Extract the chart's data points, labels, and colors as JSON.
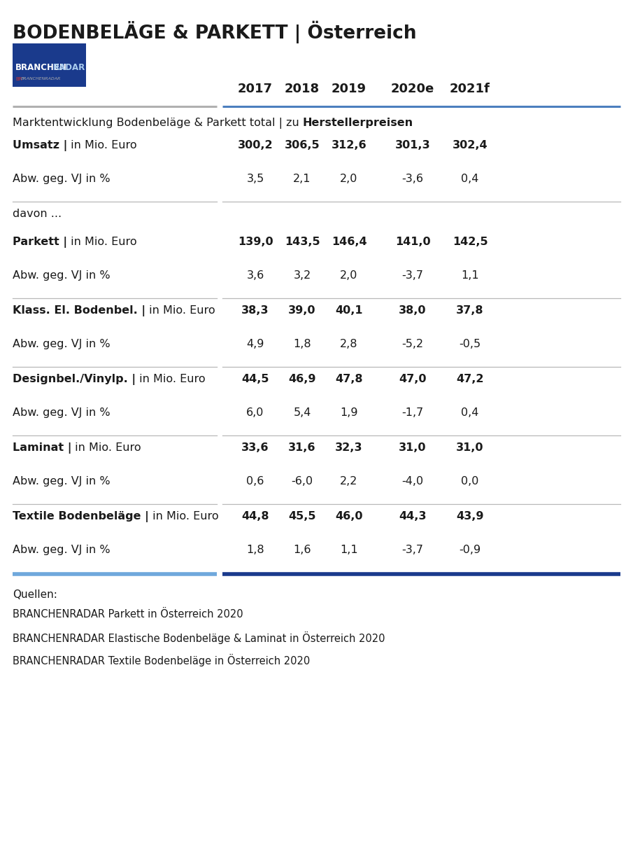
{
  "title": "BODENBELÄGE & PARKETT | Österreich",
  "logo_bg_color": "#1a3a8c",
  "years": [
    "2017",
    "2018",
    "2019",
    "2020e",
    "2021f"
  ],
  "rows": [
    {
      "label_bold": "Umsatz |",
      "label_normal": " in Mio. Euro",
      "values": [
        "300,2",
        "306,5",
        "312,6",
        "301,3",
        "302,4"
      ],
      "bold": true,
      "divider_after": false,
      "is_spacer": false
    },
    {
      "label_bold": "",
      "label_normal": "Abw. geg. VJ in %",
      "values": [
        "3,5",
        "2,1",
        "2,0",
        "-3,6",
        "0,4"
      ],
      "bold": false,
      "divider_after": true,
      "is_spacer": false
    },
    {
      "label_bold": "",
      "label_normal": "davon ...",
      "values": [
        "",
        "",
        "",
        "",
        ""
      ],
      "bold": false,
      "divider_after": false,
      "is_spacer": true
    },
    {
      "label_bold": "Parkett |",
      "label_normal": " in Mio. Euro",
      "values": [
        "139,0",
        "143,5",
        "146,4",
        "141,0",
        "142,5"
      ],
      "bold": true,
      "divider_after": false,
      "is_spacer": false
    },
    {
      "label_bold": "",
      "label_normal": "Abw. geg. VJ in %",
      "values": [
        "3,6",
        "3,2",
        "2,0",
        "-3,7",
        "1,1"
      ],
      "bold": false,
      "divider_after": true,
      "is_spacer": false
    },
    {
      "label_bold": "Klass. El. Bodenbel. |",
      "label_normal": " in Mio. Euro",
      "values": [
        "38,3",
        "39,0",
        "40,1",
        "38,0",
        "37,8"
      ],
      "bold": true,
      "divider_after": false,
      "is_spacer": false
    },
    {
      "label_bold": "",
      "label_normal": "Abw. geg. VJ in %",
      "values": [
        "4,9",
        "1,8",
        "2,8",
        "-5,2",
        "-0,5"
      ],
      "bold": false,
      "divider_after": true,
      "is_spacer": false
    },
    {
      "label_bold": "Designbel./Vinylp. |",
      "label_normal": " in Mio. Euro",
      "values": [
        "44,5",
        "46,9",
        "47,8",
        "47,0",
        "47,2"
      ],
      "bold": true,
      "divider_after": false,
      "is_spacer": false
    },
    {
      "label_bold": "",
      "label_normal": "Abw. geg. VJ in %",
      "values": [
        "6,0",
        "5,4",
        "1,9",
        "-1,7",
        "0,4"
      ],
      "bold": false,
      "divider_after": true,
      "is_spacer": false
    },
    {
      "label_bold": "Laminat |",
      "label_normal": " in Mio. Euro",
      "values": [
        "33,6",
        "31,6",
        "32,3",
        "31,0",
        "31,0"
      ],
      "bold": true,
      "divider_after": false,
      "is_spacer": false
    },
    {
      "label_bold": "",
      "label_normal": "Abw. geg. VJ in %",
      "values": [
        "0,6",
        "-6,0",
        "2,2",
        "-4,0",
        "0,0"
      ],
      "bold": false,
      "divider_after": true,
      "is_spacer": false
    },
    {
      "label_bold": "Textile Bodenbeläge |",
      "label_normal": " in Mio. Euro",
      "values": [
        "44,8",
        "45,5",
        "46,0",
        "44,3",
        "43,9"
      ],
      "bold": true,
      "divider_after": false,
      "is_spacer": false
    },
    {
      "label_bold": "",
      "label_normal": "Abw. geg. VJ in %",
      "values": [
        "1,8",
        "1,6",
        "1,1",
        "-3,7",
        "-0,9"
      ],
      "bold": false,
      "divider_after": false,
      "is_spacer": false
    }
  ],
  "sources_header": "Quellen:",
  "sources": [
    "BRANCHENRADAR Parkett in Österreich 2020",
    "BRANCHENRADAR Elastische Bodenbeläge & Laminat in Österreich 2020",
    "BRANCHENRADAR Textile Bodenbeläge in Österreich 2020"
  ],
  "bg_color": "#ffffff",
  "text_color": "#1a1a1a"
}
